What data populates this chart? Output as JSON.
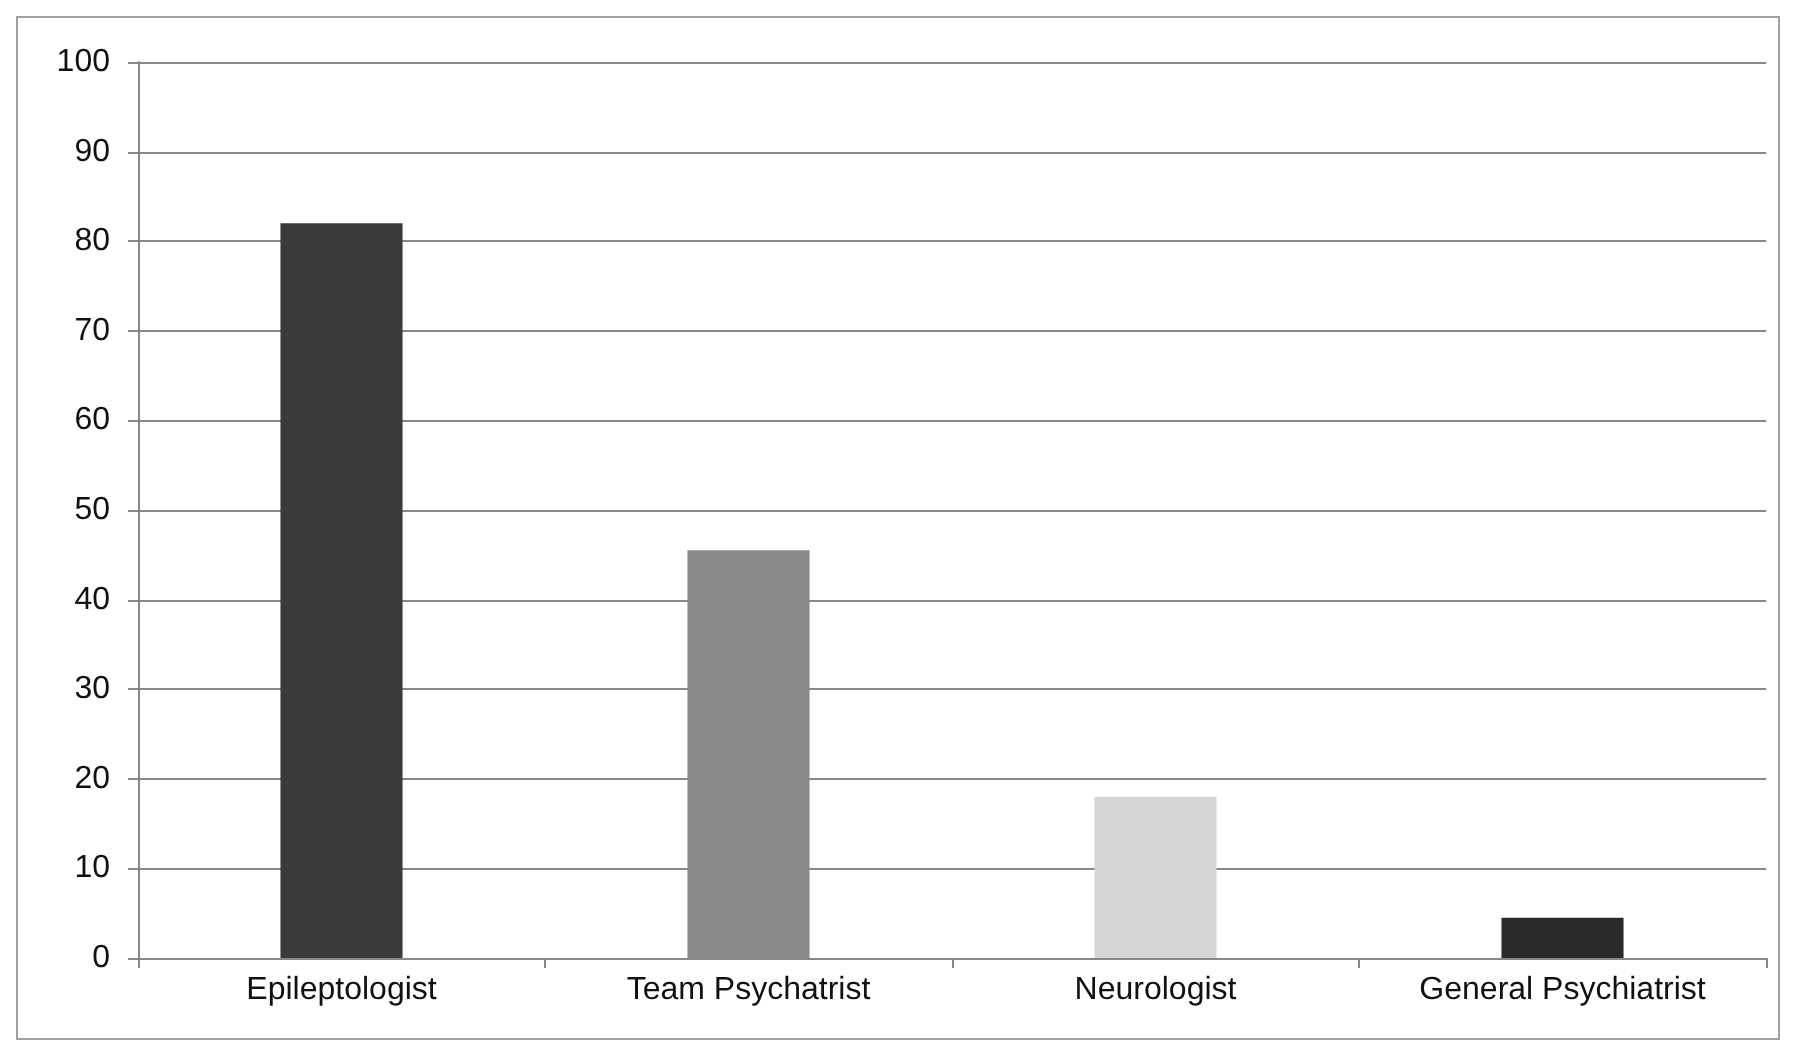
{
  "chart_data": {
    "type": "bar",
    "categories": [
      "Epileptologist",
      "Team Psychatrist",
      "Neurologist",
      "General Psychiatrist"
    ],
    "values": [
      82,
      45.5,
      18,
      4.5
    ],
    "colors": [
      "#3a3a3a",
      "#8a8a8a",
      "#d6d6d6",
      "#2a2a2a"
    ],
    "ylim": [
      0,
      100
    ],
    "yticks": [
      0,
      10,
      20,
      30,
      40,
      50,
      60,
      70,
      80,
      90,
      100
    ],
    "grid": "y"
  }
}
